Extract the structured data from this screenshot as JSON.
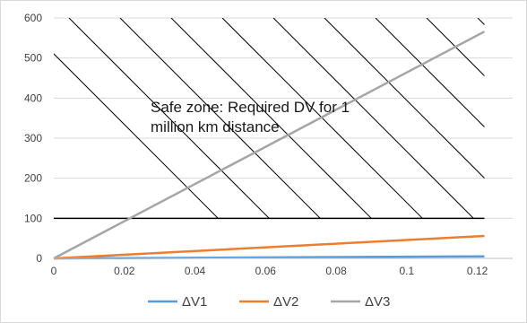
{
  "chart_data": {
    "type": "line",
    "title": "",
    "xlabel": "",
    "ylabel": "",
    "xlim": [
      0,
      0.13
    ],
    "ylim": [
      0,
      600
    ],
    "x_ticks": [
      "0",
      "0.02",
      "0.04",
      "0.06",
      "0.08",
      "0.1",
      "0.12"
    ],
    "x_tick_values": [
      0,
      0.02,
      0.04,
      0.06,
      0.08,
      0.1,
      0.12
    ],
    "y_ticks": [
      "0",
      "100",
      "200",
      "300",
      "400",
      "500",
      "600"
    ],
    "y_tick_values": [
      0,
      100,
      200,
      300,
      400,
      500,
      600
    ],
    "grid": "horizontal",
    "legend_position": "bottom",
    "series": [
      {
        "name": "ΔV1",
        "color": "#5B9BD5",
        "x": [
          0,
          0.122
        ],
        "y": [
          0,
          5
        ]
      },
      {
        "name": "ΔV2",
        "color": "#ED7D31",
        "x": [
          0,
          0.122
        ],
        "y": [
          0,
          56
        ]
      },
      {
        "name": "ΔV3",
        "color": "#A5A5A5",
        "x": [
          0,
          0.122
        ],
        "y": [
          0,
          566
        ]
      }
    ],
    "threshold_line": {
      "y": 100,
      "x_from": 0,
      "x_to": 0.122,
      "color": "#000000"
    },
    "hatched_region": {
      "y_from": 100,
      "y_to": 600,
      "x_from": 0,
      "x_to": 0.122
    },
    "annotation_lines": [
      "Safe zone: Required DV for 1",
      "million km distance"
    ]
  }
}
